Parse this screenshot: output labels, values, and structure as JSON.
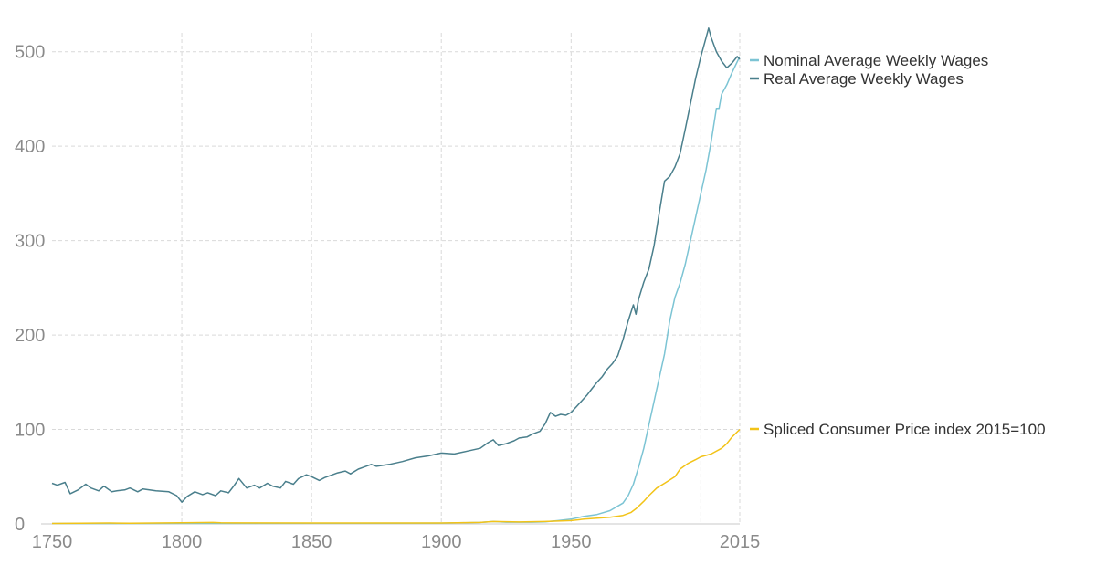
{
  "chart_data": {
    "type": "line",
    "title": "",
    "xlabel": "",
    "ylabel": "",
    "xlim": [
      1750,
      2015
    ],
    "ylim": [
      0,
      520
    ],
    "x_ticks": [
      1750,
      1800,
      1850,
      1900,
      1950,
      2015
    ],
    "y_ticks": [
      0,
      100,
      200,
      300,
      400,
      500
    ],
    "grid": true,
    "legend": "right-inline",
    "series": [
      {
        "name": "Nominal Average Weekly Wages",
        "color": "#7cc4d4",
        "points": [
          [
            1750,
            0.5
          ],
          [
            1800,
            0.6
          ],
          [
            1850,
            0.7
          ],
          [
            1900,
            0.9
          ],
          [
            1915,
            1.5
          ],
          [
            1920,
            2.5
          ],
          [
            1925,
            1.8
          ],
          [
            1935,
            1.8
          ],
          [
            1940,
            2.2
          ],
          [
            1945,
            3.5
          ],
          [
            1950,
            5
          ],
          [
            1955,
            8
          ],
          [
            1960,
            10
          ],
          [
            1965,
            14
          ],
          [
            1970,
            22
          ],
          [
            1972,
            30
          ],
          [
            1974,
            42
          ],
          [
            1976,
            60
          ],
          [
            1978,
            80
          ],
          [
            1980,
            105
          ],
          [
            1982,
            130
          ],
          [
            1984,
            155
          ],
          [
            1986,
            180
          ],
          [
            1988,
            215
          ],
          [
            1990,
            240
          ],
          [
            1992,
            255
          ],
          [
            1994,
            275
          ],
          [
            1996,
            300
          ],
          [
            1998,
            325
          ],
          [
            2000,
            350
          ],
          [
            2002,
            375
          ],
          [
            2004,
            405
          ],
          [
            2006,
            440
          ],
          [
            2007,
            440
          ],
          [
            2008,
            455
          ],
          [
            2010,
            465
          ],
          [
            2012,
            478
          ],
          [
            2015,
            495
          ]
        ]
      },
      {
        "name": "Real Average Weekly Wages",
        "color": "#4a7f8c",
        "points": [
          [
            1750,
            43
          ],
          [
            1752,
            41
          ],
          [
            1755,
            44
          ],
          [
            1757,
            32
          ],
          [
            1760,
            36
          ],
          [
            1763,
            42
          ],
          [
            1765,
            38
          ],
          [
            1768,
            35
          ],
          [
            1770,
            40
          ],
          [
            1773,
            34
          ],
          [
            1775,
            35
          ],
          [
            1778,
            36
          ],
          [
            1780,
            38
          ],
          [
            1783,
            34
          ],
          [
            1785,
            37
          ],
          [
            1790,
            35
          ],
          [
            1795,
            34
          ],
          [
            1798,
            30
          ],
          [
            1800,
            23
          ],
          [
            1802,
            29
          ],
          [
            1805,
            34
          ],
          [
            1808,
            31
          ],
          [
            1810,
            33
          ],
          [
            1813,
            30
          ],
          [
            1815,
            35
          ],
          [
            1818,
            33
          ],
          [
            1820,
            40
          ],
          [
            1822,
            48
          ],
          [
            1825,
            38
          ],
          [
            1828,
            41
          ],
          [
            1830,
            38
          ],
          [
            1833,
            43
          ],
          [
            1835,
            40
          ],
          [
            1838,
            38
          ],
          [
            1840,
            45
          ],
          [
            1843,
            42
          ],
          [
            1845,
            48
          ],
          [
            1848,
            52
          ],
          [
            1850,
            50
          ],
          [
            1853,
            46
          ],
          [
            1855,
            49
          ],
          [
            1858,
            52
          ],
          [
            1860,
            54
          ],
          [
            1863,
            56
          ],
          [
            1865,
            53
          ],
          [
            1868,
            58
          ],
          [
            1870,
            60
          ],
          [
            1873,
            63
          ],
          [
            1875,
            61
          ],
          [
            1880,
            63
          ],
          [
            1885,
            66
          ],
          [
            1890,
            70
          ],
          [
            1895,
            72
          ],
          [
            1900,
            75
          ],
          [
            1905,
            74
          ],
          [
            1910,
            77
          ],
          [
            1915,
            80
          ],
          [
            1918,
            86
          ],
          [
            1920,
            89
          ],
          [
            1922,
            83
          ],
          [
            1925,
            85
          ],
          [
            1928,
            88
          ],
          [
            1930,
            91
          ],
          [
            1933,
            92
          ],
          [
            1935,
            95
          ],
          [
            1938,
            98
          ],
          [
            1940,
            106
          ],
          [
            1942,
            118
          ],
          [
            1944,
            114
          ],
          [
            1946,
            116
          ],
          [
            1948,
            115
          ],
          [
            1950,
            118
          ],
          [
            1952,
            124
          ],
          [
            1954,
            130
          ],
          [
            1956,
            136
          ],
          [
            1958,
            143
          ],
          [
            1960,
            150
          ],
          [
            1962,
            156
          ],
          [
            1964,
            164
          ],
          [
            1966,
            170
          ],
          [
            1968,
            178
          ],
          [
            1970,
            195
          ],
          [
            1972,
            215
          ],
          [
            1974,
            232
          ],
          [
            1975,
            222
          ],
          [
            1976,
            238
          ],
          [
            1978,
            256
          ],
          [
            1980,
            270
          ],
          [
            1982,
            295
          ],
          [
            1984,
            330
          ],
          [
            1986,
            363
          ],
          [
            1988,
            368
          ],
          [
            1990,
            378
          ],
          [
            1992,
            392
          ],
          [
            1994,
            418
          ],
          [
            1996,
            445
          ],
          [
            1998,
            472
          ],
          [
            2000,
            495
          ],
          [
            2002,
            515
          ],
          [
            2003,
            525
          ],
          [
            2004,
            515
          ],
          [
            2006,
            500
          ],
          [
            2008,
            490
          ],
          [
            2010,
            483
          ],
          [
            2012,
            488
          ],
          [
            2014,
            495
          ],
          [
            2015,
            492
          ]
        ]
      },
      {
        "name": "Spliced Consumer Price index 2015=100",
        "color": "#f2c318",
        "points": [
          [
            1750,
            0.5
          ],
          [
            1772,
            1
          ],
          [
            1780,
            0.8
          ],
          [
            1800,
            1.2
          ],
          [
            1812,
            1.5
          ],
          [
            1815,
            1.2
          ],
          [
            1850,
            1
          ],
          [
            1900,
            1
          ],
          [
            1915,
            1.5
          ],
          [
            1920,
            2.5
          ],
          [
            1930,
            2
          ],
          [
            1940,
            2.5
          ],
          [
            1945,
            3
          ],
          [
            1950,
            3.5
          ],
          [
            1955,
            5
          ],
          [
            1960,
            6
          ],
          [
            1965,
            7
          ],
          [
            1970,
            9
          ],
          [
            1973,
            12
          ],
          [
            1975,
            16
          ],
          [
            1978,
            24
          ],
          [
            1980,
            30
          ],
          [
            1983,
            38
          ],
          [
            1986,
            43
          ],
          [
            1990,
            50
          ],
          [
            1992,
            58
          ],
          [
            1995,
            64
          ],
          [
            1998,
            68
          ],
          [
            2000,
            71
          ],
          [
            2004,
            74
          ],
          [
            2008,
            80
          ],
          [
            2010,
            85
          ],
          [
            2012,
            92
          ],
          [
            2015,
            100
          ]
        ]
      }
    ]
  }
}
